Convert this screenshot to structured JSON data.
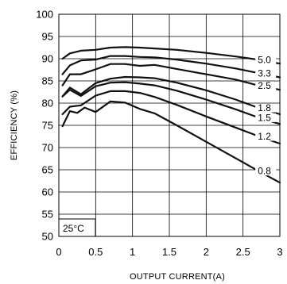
{
  "chart_data": {
    "type": "line",
    "xlabel": "OUTPUT CURRENT(A)",
    "ylabel": "EFFICIENCY (%)",
    "xlim": [
      0,
      3
    ],
    "ylim": [
      50,
      100
    ],
    "xticks": [
      0,
      0.5,
      1,
      1.5,
      2,
      2.5,
      3
    ],
    "xtick_labels": [
      "0",
      "0.5",
      "1",
      "1.5",
      "2",
      "2.5",
      "3"
    ],
    "yticks": [
      50,
      55,
      60,
      65,
      70,
      75,
      80,
      85,
      90,
      95,
      100
    ],
    "ytick_labels": [
      "50",
      "55",
      "60",
      "65",
      "70",
      "75",
      "80",
      "85",
      "90",
      "95",
      "100"
    ],
    "grid": true,
    "annotation": "25°C",
    "series": [
      {
        "name": "5.0",
        "x": [
          0.05,
          0.15,
          0.3,
          0.5,
          0.7,
          0.9,
          1.1,
          1.3,
          1.6,
          2.0,
          2.4,
          2.7,
          3.0
        ],
        "y": [
          90.0,
          91.2,
          91.8,
          92.0,
          92.5,
          92.6,
          92.5,
          92.3,
          92.0,
          91.3,
          90.5,
          89.8,
          88.9
        ]
      },
      {
        "name": "3.3",
        "x": [
          0.05,
          0.15,
          0.3,
          0.5,
          0.7,
          0.9,
          1.1,
          1.3,
          1.6,
          2.0,
          2.4,
          2.7,
          3.0
        ],
        "y": [
          86.5,
          88.5,
          89.6,
          89.8,
          90.6,
          90.6,
          90.4,
          90.3,
          89.8,
          88.9,
          87.8,
          86.8,
          85.8
        ]
      },
      {
        "name": "2.5",
        "x": [
          0.05,
          0.15,
          0.3,
          0.5,
          0.7,
          0.9,
          1.1,
          1.3,
          1.6,
          2.0,
          2.4,
          2.7,
          3.0
        ],
        "y": [
          84.0,
          86.5,
          86.5,
          87.6,
          88.8,
          88.8,
          88.4,
          88.6,
          87.7,
          86.5,
          85.3,
          84.0,
          83.0
        ]
      },
      {
        "name": "1.8",
        "x": [
          0.05,
          0.15,
          0.3,
          0.5,
          0.7,
          0.9,
          1.1,
          1.3,
          1.6,
          2.0,
          2.4,
          2.7,
          3.0
        ],
        "y": [
          81.5,
          83.5,
          82.0,
          84.5,
          85.5,
          85.9,
          85.8,
          85.6,
          84.6,
          82.9,
          80.8,
          79.0,
          77.5
        ]
      },
      {
        "name": "1.5",
        "x": [
          0.05,
          0.15,
          0.3,
          0.5,
          0.7,
          0.9,
          1.1,
          1.3,
          1.6,
          2.0,
          2.4,
          2.7,
          3.0
        ],
        "y": [
          81.5,
          83.0,
          81.6,
          83.8,
          84.6,
          84.7,
          84.4,
          84.0,
          82.8,
          80.8,
          78.6,
          76.8,
          75.3
        ]
      },
      {
        "name": "1.2",
        "x": [
          0.05,
          0.15,
          0.3,
          0.5,
          0.7,
          0.9,
          1.1,
          1.3,
          1.6,
          2.0,
          2.4,
          2.7,
          3.0
        ],
        "y": [
          77.5,
          79.2,
          79.5,
          81.7,
          82.7,
          82.7,
          82.3,
          81.4,
          79.6,
          77.0,
          74.5,
          72.6,
          70.9
        ]
      },
      {
        "name": "0.8",
        "x": [
          0.05,
          0.15,
          0.25,
          0.35,
          0.5,
          0.7,
          0.9,
          1.1,
          1.3,
          1.6,
          2.0,
          2.4,
          2.7,
          3.0
        ],
        "y": [
          74.8,
          78.2,
          77.8,
          79.0,
          78.0,
          80.4,
          80.1,
          78.7,
          77.7,
          75.0,
          71.3,
          67.6,
          64.8,
          62.1
        ]
      }
    ]
  }
}
